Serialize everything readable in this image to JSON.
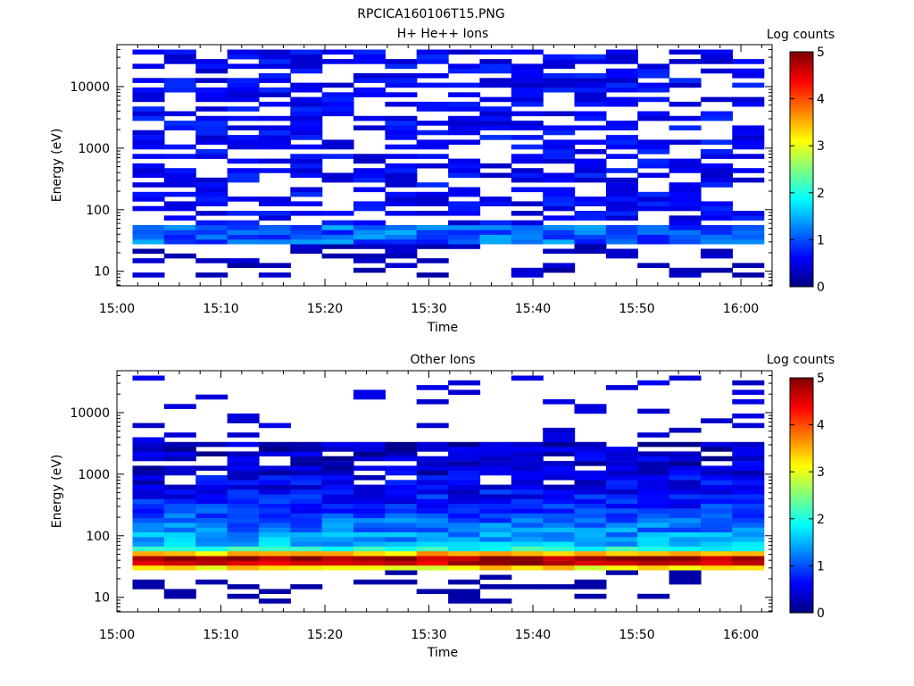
{
  "figure_title": "RPCICA160106T15.PNG",
  "chart_data": [
    {
      "type": "heatmap",
      "title": "H+ He++ Ions",
      "xlabel": "Time",
      "ylabel": "Energy (eV)",
      "x_ticks": [
        "15:00",
        "15:10",
        "15:20",
        "15:30",
        "15:40",
        "15:50",
        "16:00"
      ],
      "x_range_minutes": [
        0,
        63
      ],
      "y_scale": "log",
      "y_ticks": [
        "10",
        "100",
        "1000",
        "10000"
      ],
      "y_range": [
        5.8,
        48000
      ],
      "colorbar": {
        "label": "Log counts",
        "ticks": [
          "0",
          "1",
          "2",
          "3",
          "4",
          "5"
        ],
        "range": [
          0,
          5
        ]
      },
      "time_bins": 20,
      "energy_bins": 48,
      "pattern": "sparse",
      "seed": 7,
      "low_band_energy_ev": [
        28,
        58
      ],
      "low_band_level": 1.1,
      "background_level": 0.35
    },
    {
      "type": "heatmap",
      "title": "Other Ions",
      "xlabel": "Time",
      "ylabel": "Energy (eV)",
      "x_ticks": [
        "15:00",
        "15:10",
        "15:20",
        "15:30",
        "15:40",
        "15:50",
        "16:00"
      ],
      "x_range_minutes": [
        0,
        63
      ],
      "y_scale": "log",
      "y_ticks": [
        "10",
        "100",
        "1000",
        "10000"
      ],
      "y_range": [
        5.8,
        48000
      ],
      "colorbar": {
        "label": "Log counts",
        "ticks": [
          "0",
          "1",
          "2",
          "3",
          "4",
          "5"
        ],
        "range": [
          0,
          5
        ]
      },
      "time_bins": 20,
      "energy_bins": 48,
      "pattern": "dense",
      "seed": 13,
      "peak_energy_ev": 40,
      "peak_level": 3.7,
      "background_level": 1.4
    }
  ]
}
